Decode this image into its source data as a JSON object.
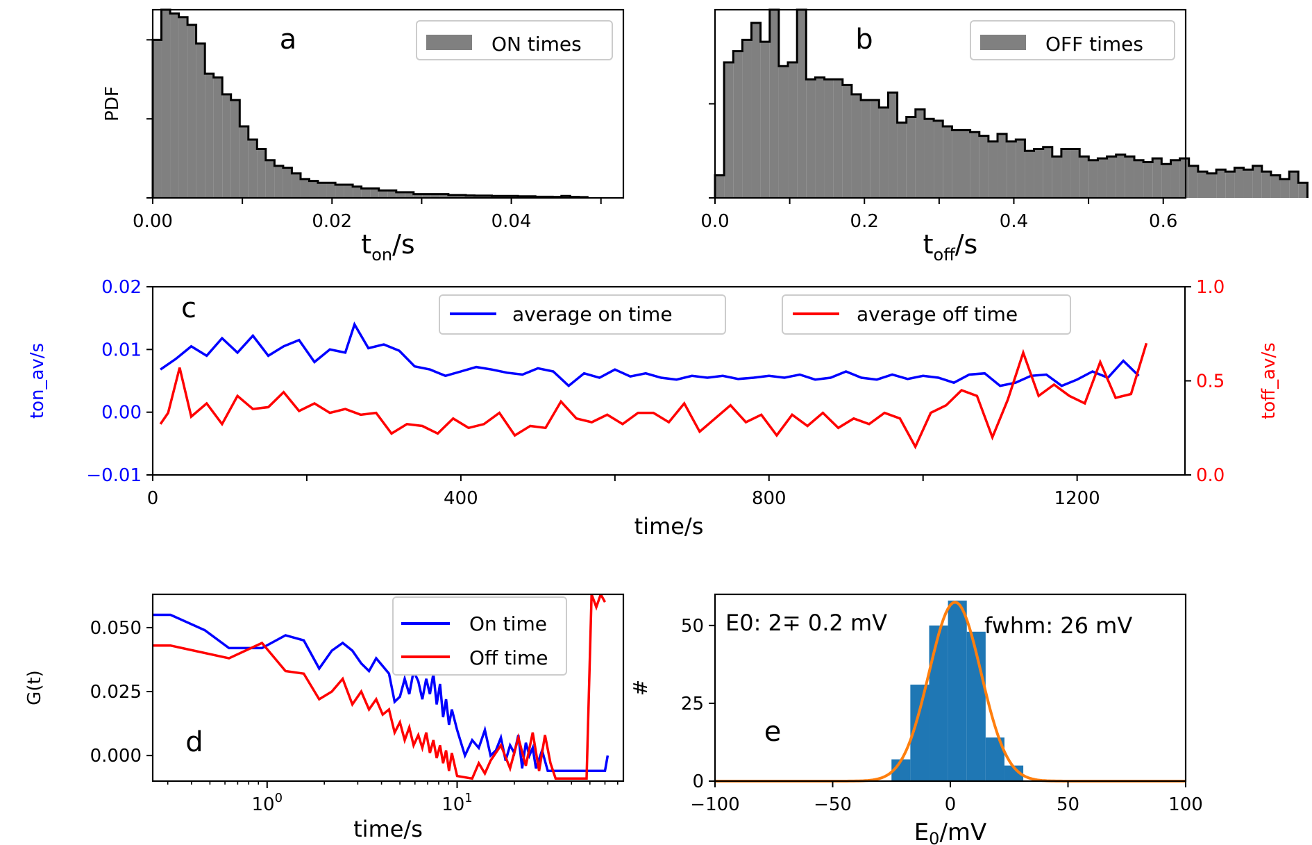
{
  "colors": {
    "hist_fill": "#808080",
    "on_line": "#0000ff",
    "off_line": "#ff0000",
    "e0_bar": "#1f77b4",
    "gauss": "#ff7f0e",
    "axis": "#000000"
  },
  "chart_data": [
    {
      "id": "a",
      "type": "bar",
      "panel_label": "a",
      "legend": [
        "ON times"
      ],
      "legend_position": "top-right",
      "ylabel": "PDF",
      "xlabel_main": "t",
      "xlabel_sub": "on",
      "xlabel_tail": "/s",
      "xlim": [
        0,
        0.0525
      ],
      "ylim": [
        0,
        100
      ],
      "xticks": [
        0.0,
        0.02,
        0.04
      ],
      "xtick_labels": [
        "0.00",
        "0.02",
        "0.04"
      ],
      "minor_xticks": [
        0.01,
        0.03,
        0.05
      ],
      "yticks": [
        42,
        84
      ],
      "bin_start": 0.0,
      "bin_width": 0.00097,
      "values": [
        84,
        100,
        98,
        96,
        92,
        82,
        66,
        64,
        55,
        52,
        38,
        31,
        26,
        20,
        17,
        16,
        13,
        10,
        9,
        8,
        8,
        7,
        7,
        6,
        5,
        5,
        4,
        4,
        3,
        3,
        2,
        2,
        2,
        2,
        1.5,
        1.5,
        1.3,
        1.2,
        1.2,
        1.0,
        1.0,
        1.0,
        0.8,
        0.8,
        0.6,
        0.6,
        0.5,
        1.0,
        0.5,
        0.4
      ]
    },
    {
      "id": "b",
      "type": "bar",
      "panel_label": "b",
      "legend": [
        "OFF times"
      ],
      "legend_position": "top-right",
      "xlabel_main": "t",
      "xlabel_sub": "off",
      "xlabel_tail": "/s",
      "xlim": [
        0,
        0.63
      ],
      "ylim": [
        0,
        100
      ],
      "xticks": [
        0.0,
        0.2,
        0.4,
        0.6
      ],
      "xtick_labels": [
        "0.0",
        "0.2",
        "0.4",
        "0.6"
      ],
      "minor_xticks": [
        0.1,
        0.3,
        0.5
      ],
      "yticks": [
        50
      ],
      "bin_start": 0.0,
      "bin_width": 0.0122,
      "values": [
        12,
        72,
        78,
        84,
        93,
        83,
        100,
        70,
        72,
        100,
        63,
        64,
        63,
        63,
        60,
        55,
        52,
        52,
        48,
        56,
        40,
        43,
        47,
        42,
        41,
        38,
        36,
        36,
        35,
        33,
        30,
        34,
        30,
        31,
        25,
        26,
        27,
        22,
        26,
        26,
        22,
        20,
        21,
        22,
        23,
        22,
        20,
        19,
        21,
        18,
        20,
        21,
        17,
        14,
        13,
        15,
        14,
        16,
        15,
        17,
        14,
        12,
        10,
        14,
        8
      ]
    },
    {
      "id": "c",
      "type": "line",
      "panel_label": "c",
      "xlabel": "time/s",
      "ylabel_left": "ton_av/s",
      "ylabel_right": "toff_av/s",
      "xlim": [
        0,
        1340
      ],
      "ylim_left": [
        -0.01,
        0.02
      ],
      "ylim_right": [
        0.0,
        1.0
      ],
      "xticks": [
        0,
        400,
        800,
        1200
      ],
      "minor_xticks": [
        200,
        600,
        1000
      ],
      "yticks_left": [
        -0.01,
        0.0,
        0.01,
        0.02
      ],
      "ytick_labels_left": [
        "−0.01",
        "0.00",
        "0.01",
        "0.02"
      ],
      "yticks_right": [
        0.0,
        0.5,
        1.0
      ],
      "ytick_labels_right": [
        "0.0",
        "0.5",
        "1.0"
      ],
      "series": [
        {
          "name": "average on time",
          "axis": "left",
          "x": [
            10,
            30,
            50,
            70,
            90,
            110,
            130,
            150,
            170,
            190,
            210,
            230,
            250,
            262,
            280,
            300,
            320,
            340,
            360,
            380,
            400,
            420,
            440,
            460,
            480,
            500,
            520,
            540,
            560,
            580,
            600,
            620,
            640,
            660,
            680,
            700,
            720,
            740,
            760,
            780,
            800,
            820,
            840,
            860,
            880,
            900,
            920,
            940,
            960,
            980,
            1000,
            1020,
            1040,
            1060,
            1080,
            1100,
            1120,
            1140,
            1160,
            1180,
            1200,
            1220,
            1240,
            1260,
            1280
          ],
          "values": [
            0.0068,
            0.0085,
            0.0105,
            0.009,
            0.0118,
            0.0095,
            0.0122,
            0.009,
            0.0105,
            0.0115,
            0.008,
            0.01,
            0.0095,
            0.014,
            0.0102,
            0.0108,
            0.0098,
            0.0073,
            0.0068,
            0.0058,
            0.0065,
            0.0072,
            0.0068,
            0.0063,
            0.006,
            0.007,
            0.0065,
            0.0042,
            0.0062,
            0.0055,
            0.0068,
            0.0057,
            0.0062,
            0.0055,
            0.0052,
            0.0058,
            0.0055,
            0.0058,
            0.0053,
            0.0055,
            0.0058,
            0.0055,
            0.006,
            0.0052,
            0.0055,
            0.0065,
            0.0055,
            0.0052,
            0.006,
            0.0053,
            0.0058,
            0.0055,
            0.0047,
            0.006,
            0.0062,
            0.0042,
            0.0047,
            0.0058,
            0.006,
            0.0042,
            0.0052,
            0.0065,
            0.0055,
            0.0082,
            0.0058
          ]
        },
        {
          "name": "average off time",
          "axis": "right",
          "x": [
            10,
            20,
            35,
            50,
            70,
            90,
            110,
            130,
            150,
            170,
            190,
            210,
            230,
            250,
            270,
            290,
            310,
            330,
            350,
            370,
            390,
            410,
            430,
            450,
            470,
            490,
            510,
            530,
            550,
            570,
            590,
            610,
            630,
            650,
            670,
            690,
            710,
            730,
            750,
            770,
            790,
            810,
            830,
            850,
            870,
            890,
            910,
            930,
            950,
            970,
            990,
            1010,
            1030,
            1050,
            1070,
            1090,
            1110,
            1130,
            1150,
            1170,
            1190,
            1210,
            1230,
            1250,
            1270,
            1290
          ],
          "values": [
            0.27,
            0.33,
            0.57,
            0.31,
            0.38,
            0.27,
            0.42,
            0.35,
            0.36,
            0.44,
            0.34,
            0.38,
            0.33,
            0.35,
            0.32,
            0.33,
            0.22,
            0.27,
            0.26,
            0.22,
            0.3,
            0.25,
            0.27,
            0.33,
            0.21,
            0.26,
            0.25,
            0.39,
            0.3,
            0.28,
            0.32,
            0.27,
            0.33,
            0.33,
            0.28,
            0.38,
            0.23,
            0.3,
            0.37,
            0.28,
            0.32,
            0.21,
            0.32,
            0.26,
            0.33,
            0.25,
            0.3,
            0.27,
            0.33,
            0.3,
            0.15,
            0.33,
            0.37,
            0.45,
            0.42,
            0.2,
            0.4,
            0.65,
            0.42,
            0.48,
            0.42,
            0.38,
            0.6,
            0.41,
            0.43,
            0.7
          ]
        }
      ]
    },
    {
      "id": "d",
      "type": "line",
      "panel_label": "d",
      "xscale": "log",
      "xlabel": "time/s",
      "ylabel": "G(t)",
      "xlim": [
        0.25,
        75
      ],
      "ylim": [
        -0.01,
        0.063
      ],
      "xticks": [
        1,
        10
      ],
      "xtick_labels_base": [
        "10",
        "10"
      ],
      "xtick_labels_exp": [
        "0",
        "1"
      ],
      "yticks": [
        0.0,
        0.025,
        0.05
      ],
      "ytick_labels": [
        "0.000",
        "0.025",
        "0.050"
      ],
      "series": [
        {
          "name": "On time",
          "x": [
            0.25,
            0.31,
            0.47,
            0.63,
            0.94,
            1.25,
            1.56,
            1.88,
            2.19,
            2.5,
            2.81,
            3.13,
            3.44,
            3.75,
            4.06,
            4.38,
            4.69,
            5.0,
            5.3,
            5.6,
            5.9,
            6.25,
            6.56,
            6.88,
            7.19,
            7.5,
            7.81,
            8.13,
            8.44,
            8.75,
            9.06,
            9.38,
            10,
            11,
            12,
            13,
            14,
            15,
            16,
            17,
            18,
            19,
            20,
            21,
            22,
            23,
            24,
            25,
            26,
            28,
            30,
            60,
            62
          ],
          "values": [
            0.055,
            0.055,
            0.049,
            0.042,
            0.042,
            0.047,
            0.045,
            0.034,
            0.041,
            0.044,
            0.041,
            0.036,
            0.033,
            0.038,
            0.035,
            0.032,
            0.021,
            0.023,
            0.03,
            0.024,
            0.033,
            0.029,
            0.022,
            0.03,
            0.024,
            0.032,
            0.02,
            0.028,
            0.015,
            0.022,
            0.012,
            0.018,
            0.01,
            0.0,
            0.006,
            0.003,
            0.01,
            0.0,
            0.002,
            0.007,
            -0.002,
            0.004,
            0.001,
            0.008,
            -0.005,
            0.005,
            0.0,
            0.003,
            -0.005,
            0.002,
            -0.006,
            -0.006,
            0.0
          ]
        },
        {
          "name": "Off time",
          "x": [
            0.25,
            0.31,
            0.63,
            0.94,
            1.25,
            1.56,
            1.88,
            2.19,
            2.5,
            2.81,
            3.13,
            3.44,
            3.75,
            4.06,
            4.38,
            4.69,
            5.0,
            5.3,
            5.6,
            5.9,
            6.25,
            6.56,
            6.88,
            7.19,
            7.5,
            7.81,
            8.13,
            8.44,
            8.75,
            9.06,
            9.38,
            10,
            12,
            13,
            14,
            15,
            17,
            19,
            21,
            23,
            25,
            27,
            29,
            31,
            33,
            48,
            51,
            54,
            57,
            60
          ],
          "values": [
            0.043,
            0.043,
            0.038,
            0.044,
            0.033,
            0.032,
            0.022,
            0.025,
            0.03,
            0.02,
            0.025,
            0.018,
            0.022,
            0.016,
            0.018,
            0.009,
            0.013,
            0.006,
            0.011,
            0.004,
            0.008,
            0.003,
            0.009,
            0.001,
            0.006,
            -0.001,
            0.004,
            -0.003,
            0.002,
            -0.006,
            0.001,
            -0.008,
            -0.009,
            -0.003,
            -0.007,
            -0.002,
            0.004,
            -0.005,
            0.007,
            -0.004,
            0.009,
            -0.006,
            0.008,
            -0.003,
            -0.009,
            -0.009,
            0.063,
            0.058,
            0.063,
            0.06
          ]
        }
      ]
    },
    {
      "id": "e",
      "type": "bar",
      "panel_label": "e",
      "annotation_left": "E0: 2∓ 0.2 mV",
      "annotation_right": "fwhm: 26 mV",
      "ylabel": "#",
      "xlabel_main": "E",
      "xlabel_sub": "0",
      "xlabel_tail": "/mV",
      "xlim": [
        -100,
        100
      ],
      "ylim": [
        0,
        60
      ],
      "xticks": [
        -100,
        -50,
        0,
        50,
        100
      ],
      "xtick_labels": [
        "−100",
        "−50",
        "0",
        "50",
        "100"
      ],
      "yticks": [
        0,
        25,
        50
      ],
      "ytick_labels": [
        "0",
        "25",
        "50"
      ],
      "bin_edges": [
        -25,
        -17,
        -9,
        -1,
        7,
        15,
        23,
        31
      ],
      "values": [
        7,
        31,
        50,
        58,
        48,
        14,
        5
      ],
      "fit": {
        "type": "gaussian",
        "amplitude": 57.5,
        "center": 2,
        "fwhm": 26
      }
    }
  ]
}
